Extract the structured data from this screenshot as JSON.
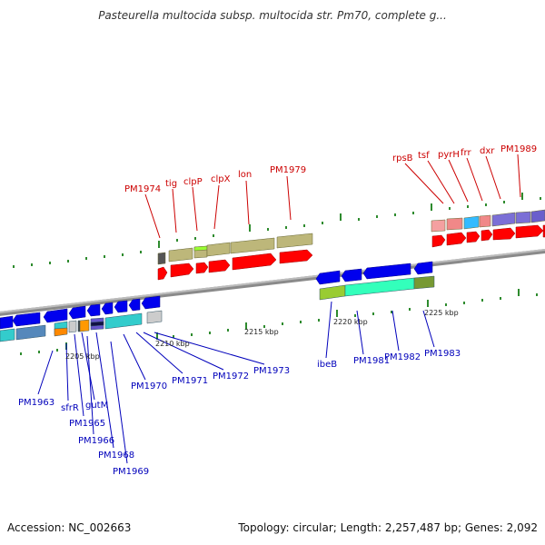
{
  "title": "Pasteurella multocida subsp. multocida str. Pm70, complete g...",
  "footer": {
    "accession": "Accession: NC_002663",
    "summary": "Topology: circular; Length: 2,257,487 bp; Genes: 2,092"
  },
  "colors": {
    "forward_label": "#cc0000",
    "reverse_label": "#0000bb",
    "backbone": "#888888",
    "tick": "#2e8b2e",
    "forward_cds": "#ff0000",
    "reverse_cds": "#0000ee"
  },
  "ticks": [
    {
      "label": "2205 kbp"
    },
    {
      "label": "2210 kbp"
    },
    {
      "label": "2215 kbp"
    },
    {
      "label": "2220 kbp"
    },
    {
      "label": "2225 kbp"
    }
  ],
  "forward_genes": [
    {
      "label": "PM1974"
    },
    {
      "label": "tig"
    },
    {
      "label": "clpP"
    },
    {
      "label": "clpX"
    },
    {
      "label": "lon"
    },
    {
      "label": "PM1979"
    },
    {
      "label": "rpsB"
    },
    {
      "label": "tsf"
    },
    {
      "label": "pyrH"
    },
    {
      "label": "frr"
    },
    {
      "label": "dxr"
    },
    {
      "label": "PM1989"
    }
  ],
  "reverse_genes": [
    {
      "label": "PM1963"
    },
    {
      "label": "sfrR"
    },
    {
      "label": "PM1965"
    },
    {
      "label": "gutM"
    },
    {
      "label": "PM1966"
    },
    {
      "label": "PM1968"
    },
    {
      "label": "PM1969"
    },
    {
      "label": "PM1970"
    },
    {
      "label": "PM1971"
    },
    {
      "label": "PM1972"
    },
    {
      "label": "PM1973"
    },
    {
      "label": "ibeB"
    },
    {
      "label": "PM1981"
    },
    {
      "label": "PM1982"
    },
    {
      "label": "PM1983"
    }
  ]
}
